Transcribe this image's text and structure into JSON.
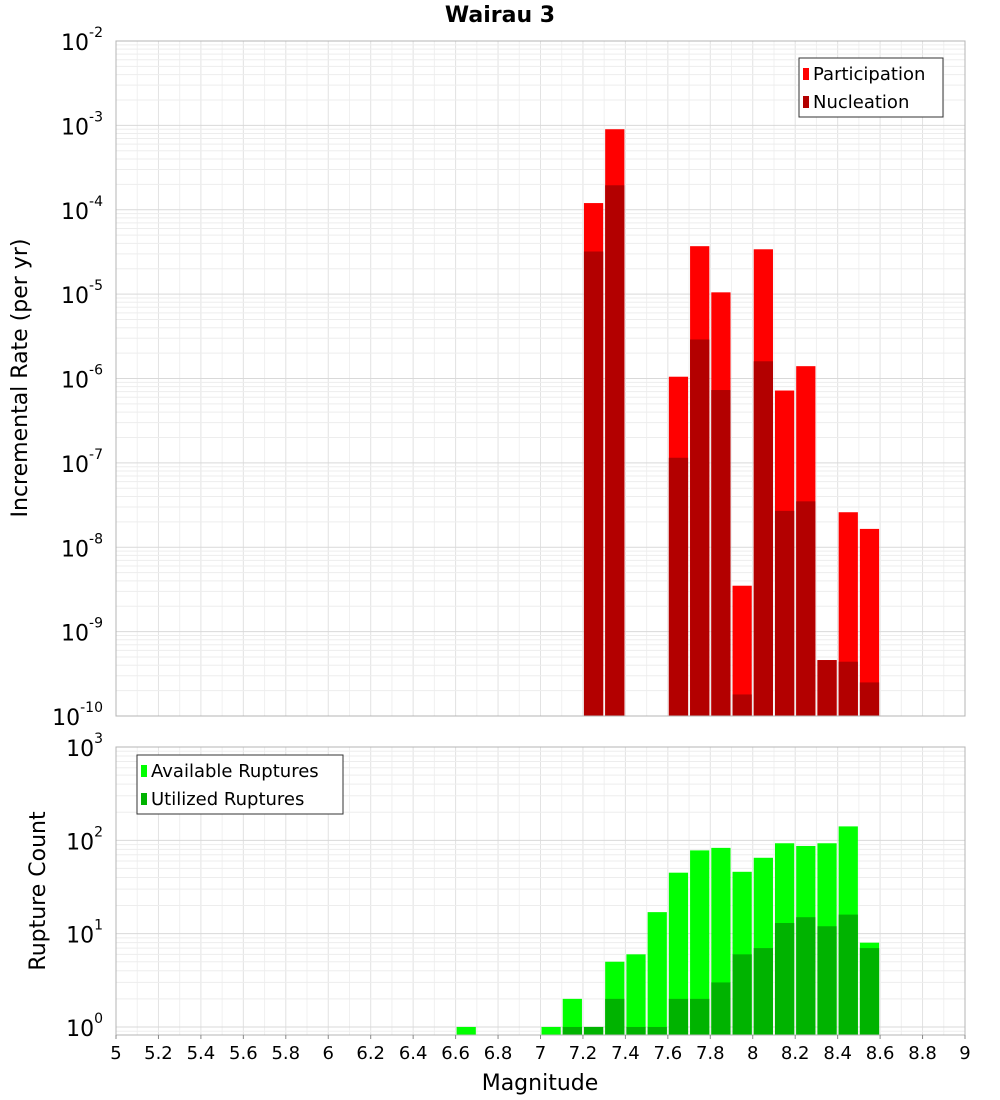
{
  "chart_data": [
    {
      "type": "bar",
      "title": "Wairau 3",
      "xlabel": "",
      "ylabel": "Incremental Rate (per yr)",
      "yscale": "log",
      "ylim": [
        1e-10,
        0.01
      ],
      "xlim": [
        5,
        9
      ],
      "bin_width": 0.1,
      "grid": true,
      "legend_position": "top-right",
      "y_ticks": [
        {
          "base": "10",
          "exp": "-2",
          "value": 0.01
        },
        {
          "base": "10",
          "exp": "-3",
          "value": 0.001
        },
        {
          "base": "10",
          "exp": "-4",
          "value": 0.0001
        },
        {
          "base": "10",
          "exp": "-5",
          "value": 1e-05
        },
        {
          "base": "10",
          "exp": "-6",
          "value": 1e-06
        },
        {
          "base": "10",
          "exp": "-7",
          "value": 1e-07
        },
        {
          "base": "10",
          "exp": "-8",
          "value": 1e-08
        },
        {
          "base": "10",
          "exp": "-9",
          "value": 1e-09
        },
        {
          "base": "10",
          "exp": "-10",
          "value": 1e-10
        }
      ],
      "series": [
        {
          "name": "Participation",
          "color": "#ff0000",
          "points": [
            {
              "x": 7.25,
              "y": 0.00012
            },
            {
              "x": 7.35,
              "y": 0.0009
            },
            {
              "x": 7.65,
              "y": 1.05e-06
            },
            {
              "x": 7.75,
              "y": 3.7e-05
            },
            {
              "x": 7.85,
              "y": 1.05e-05
            },
            {
              "x": 7.95,
              "y": 3.5e-09
            },
            {
              "x": 8.05,
              "y": 3.4e-05
            },
            {
              "x": 8.15,
              "y": 7.2e-07
            },
            {
              "x": 8.25,
              "y": 1.4e-06
            },
            {
              "x": 8.35,
              "y": 4.6e-10
            },
            {
              "x": 8.45,
              "y": 2.6e-08
            },
            {
              "x": 8.55,
              "y": 1.65e-08
            }
          ]
        },
        {
          "name": "Nucleation",
          "color": "#b30000",
          "points": [
            {
              "x": 7.25,
              "y": 3.2e-05
            },
            {
              "x": 7.35,
              "y": 0.000195
            },
            {
              "x": 7.65,
              "y": 1.15e-07
            },
            {
              "x": 7.75,
              "y": 2.9e-06
            },
            {
              "x": 7.85,
              "y": 7.3e-07
            },
            {
              "x": 7.95,
              "y": 1.8e-10
            },
            {
              "x": 8.05,
              "y": 1.6e-06
            },
            {
              "x": 8.15,
              "y": 2.7e-08
            },
            {
              "x": 8.25,
              "y": 3.5e-08
            },
            {
              "x": 8.35,
              "y": 4.6e-10
            },
            {
              "x": 8.45,
              "y": 4.4e-10
            },
            {
              "x": 8.55,
              "y": 2.5e-10
            }
          ]
        }
      ]
    },
    {
      "type": "bar",
      "title": "",
      "xlabel": "Magnitude",
      "ylabel": "Rupture Count",
      "yscale": "log",
      "ylim": [
        0.82,
        1000
      ],
      "xlim": [
        5,
        9
      ],
      "bin_width": 0.1,
      "grid": true,
      "legend_position": "top-left",
      "x_ticks": [
        "5",
        "5.2",
        "5.4",
        "5.6",
        "5.8",
        "6",
        "6.2",
        "6.4",
        "6.6",
        "6.8",
        "7",
        "7.2",
        "7.4",
        "7.6",
        "7.8",
        "8",
        "8.2",
        "8.4",
        "8.6",
        "8.8",
        "9"
      ],
      "y_ticks": [
        {
          "base": "10",
          "exp": "3",
          "value": 1000
        },
        {
          "base": "10",
          "exp": "2",
          "value": 100
        },
        {
          "base": "10",
          "exp": "1",
          "value": 10
        },
        {
          "base": "10",
          "exp": "0",
          "value": 1
        }
      ],
      "series": [
        {
          "name": "Available Ruptures",
          "color": "#00ff00",
          "points": [
            {
              "x": 6.65,
              "y": 1
            },
            {
              "x": 7.05,
              "y": 1
            },
            {
              "x": 7.15,
              "y": 2
            },
            {
              "x": 7.25,
              "y": 1
            },
            {
              "x": 7.35,
              "y": 5
            },
            {
              "x": 7.45,
              "y": 6
            },
            {
              "x": 7.55,
              "y": 17
            },
            {
              "x": 7.65,
              "y": 45
            },
            {
              "x": 7.75,
              "y": 78
            },
            {
              "x": 7.85,
              "y": 83
            },
            {
              "x": 7.95,
              "y": 46
            },
            {
              "x": 8.05,
              "y": 65
            },
            {
              "x": 8.15,
              "y": 93
            },
            {
              "x": 8.25,
              "y": 87
            },
            {
              "x": 8.35,
              "y": 93
            },
            {
              "x": 8.45,
              "y": 141
            },
            {
              "x": 8.55,
              "y": 8
            }
          ]
        },
        {
          "name": "Utilized Ruptures",
          "color": "#00b300",
          "points": [
            {
              "x": 7.15,
              "y": 1
            },
            {
              "x": 7.25,
              "y": 1
            },
            {
              "x": 7.35,
              "y": 2
            },
            {
              "x": 7.45,
              "y": 1
            },
            {
              "x": 7.55,
              "y": 1
            },
            {
              "x": 7.65,
              "y": 2
            },
            {
              "x": 7.75,
              "y": 2
            },
            {
              "x": 7.85,
              "y": 3
            },
            {
              "x": 7.95,
              "y": 6
            },
            {
              "x": 8.05,
              "y": 7
            },
            {
              "x": 8.15,
              "y": 13
            },
            {
              "x": 8.25,
              "y": 15
            },
            {
              "x": 8.35,
              "y": 12
            },
            {
              "x": 8.45,
              "y": 16
            },
            {
              "x": 8.55,
              "y": 7
            }
          ]
        }
      ]
    }
  ]
}
